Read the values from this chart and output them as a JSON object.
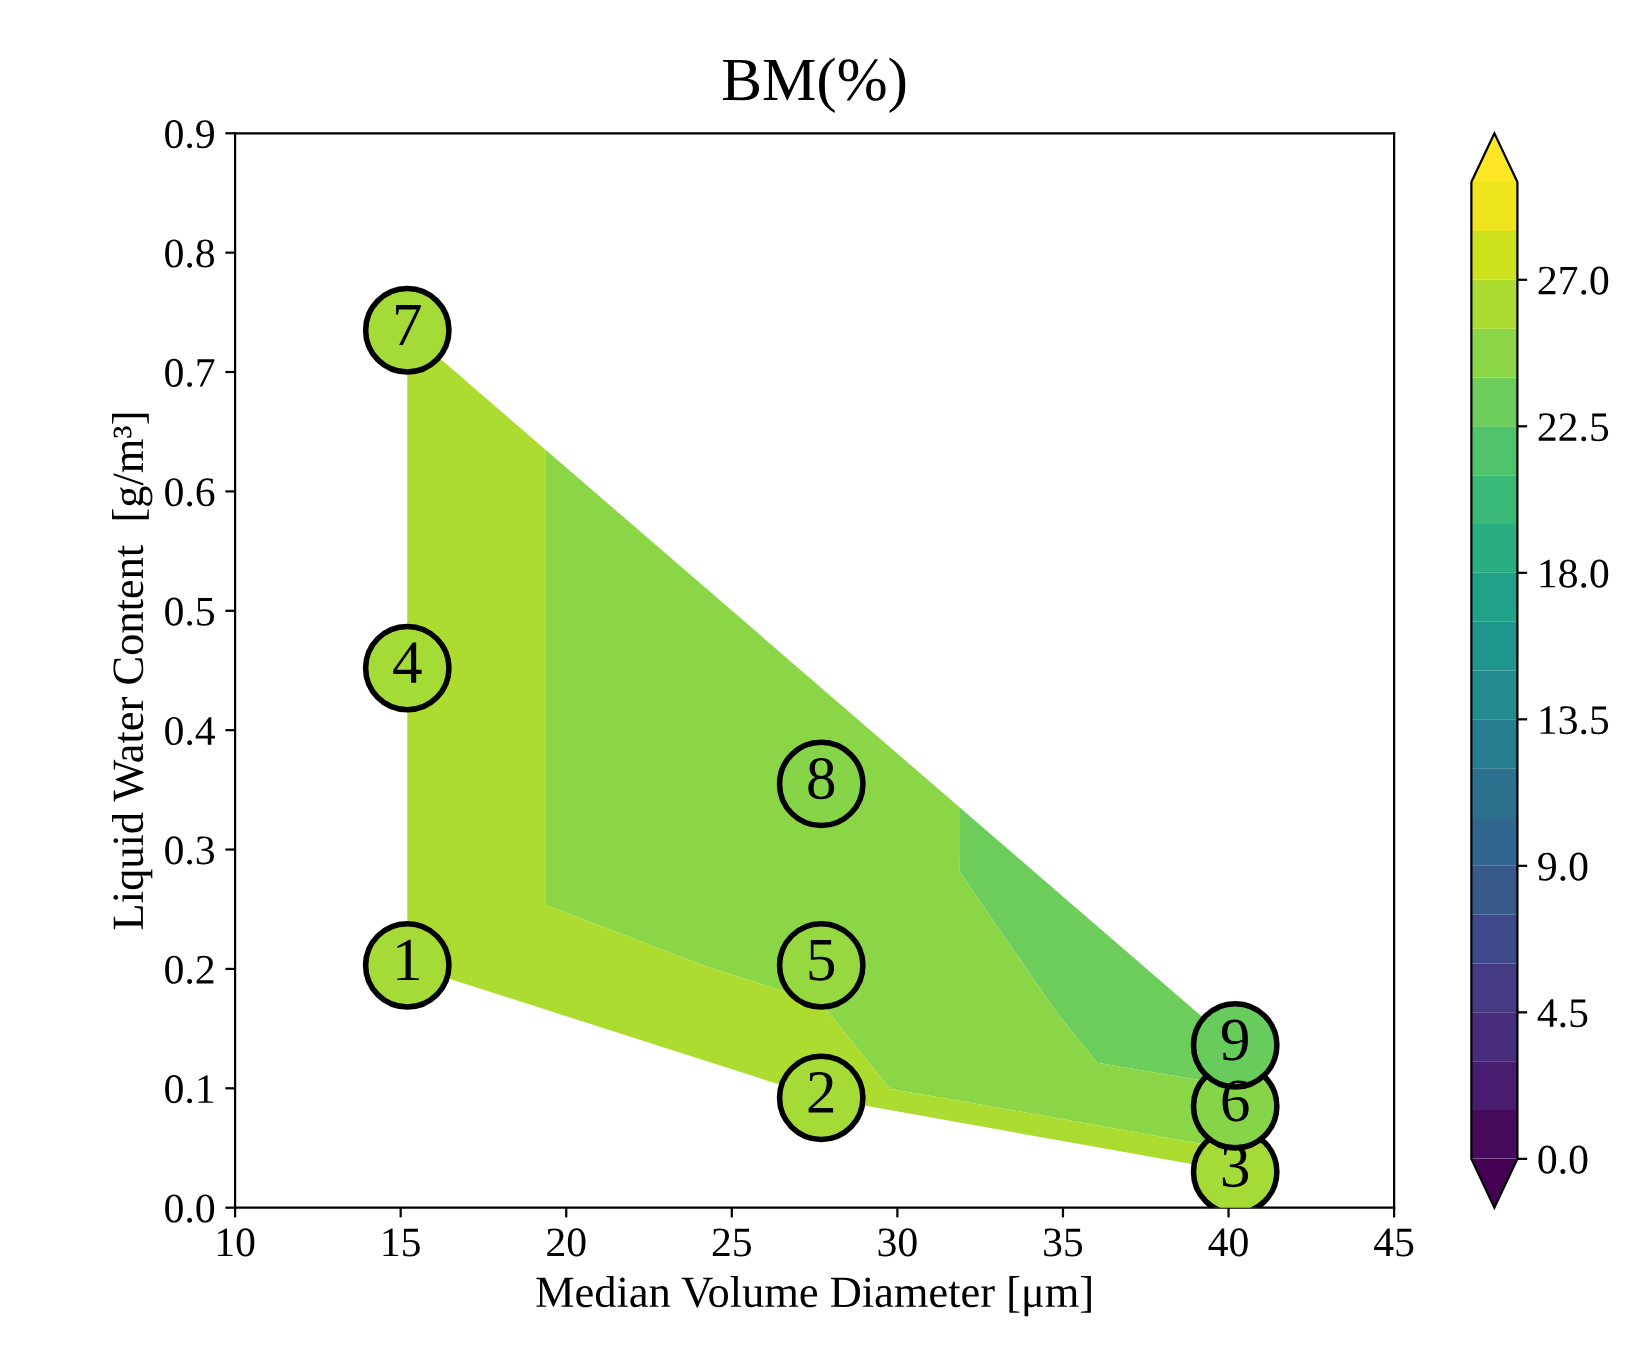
{
  "chart_data": {
    "type": "scatter",
    "title": "BM(%)",
    "xlabel": "Median Volume Diameter [μm]",
    "ylabel": "Liquid Water Content  [g/m³]",
    "x": [
      15.2,
      27.7,
      40.2,
      15.2,
      27.7,
      40.2,
      15.2,
      27.7,
      40.2
    ],
    "values": [
      0.203,
      0.092,
      0.03,
      0.452,
      0.203,
      0.085,
      0.735,
      0.355,
      0.136
    ],
    "cvalues": [
      26,
      26,
      26,
      26,
      25.3,
      24.5,
      26,
      24.5,
      23
    ],
    "annotations": [
      {
        "text": "1",
        "x": 15.2,
        "y": 0.203
      },
      {
        "text": "2",
        "x": 27.7,
        "y": 0.092
      },
      {
        "text": "3",
        "x": 40.2,
        "y": 0.03
      },
      {
        "text": "4",
        "x": 15.2,
        "y": 0.452
      },
      {
        "text": "5",
        "x": 27.7,
        "y": 0.203
      },
      {
        "text": "6",
        "x": 40.2,
        "y": 0.085
      },
      {
        "text": "7",
        "x": 15.2,
        "y": 0.735
      },
      {
        "text": "8",
        "x": 27.7,
        "y": 0.355
      },
      {
        "text": "9",
        "x": 40.2,
        "y": 0.136
      }
    ],
    "marker": "circle",
    "xlim": [
      10,
      45
    ],
    "xticks": [
      10,
      15,
      20,
      25,
      30,
      35,
      40,
      45
    ],
    "ylim": [
      0,
      0.9
    ],
    "yticks": [
      {
        "value": 0,
        "label": "0.0"
      },
      0.1,
      0.2,
      0.3,
      0.4,
      0.5,
      0.6,
      0.7,
      0.8,
      0.9
    ],
    "clim": [
      0,
      30
    ],
    "cticks": [
      {
        "value": 0,
        "label": "0.0"
      },
      4.5,
      {
        "value": 9,
        "label": "9.0"
      },
      13.5,
      {
        "value": 18,
        "label": "18.0"
      },
      22.5,
      {
        "value": 27,
        "label": "27.0"
      }
    ],
    "grid": false,
    "legend": false
  }
}
